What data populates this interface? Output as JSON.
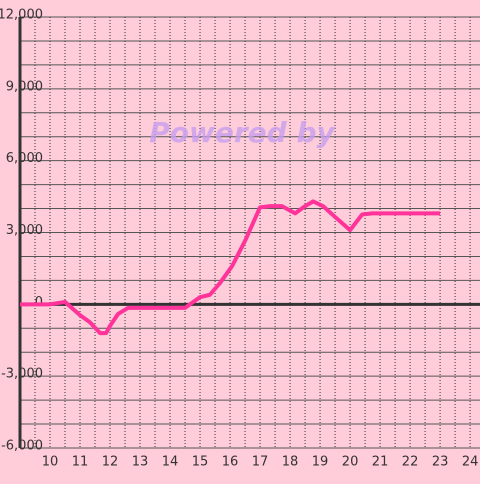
{
  "chart_data": {
    "type": "line",
    "annotation": "Powered by",
    "x": [
      9,
      10,
      10.5,
      11,
      11.33,
      11.67,
      11.87,
      12,
      12.27,
      12.6,
      14.5,
      15,
      15.33,
      15.67,
      16.07,
      16.5,
      17,
      17.33,
      17.73,
      18.17,
      18.5,
      18.77,
      19.1,
      19.5,
      20,
      20.4,
      20.73,
      23
    ],
    "series": [
      {
        "color": "#ff3399",
        "values": [
          0,
          0,
          100,
          -450,
          -750,
          -1200,
          -1200,
          -900,
          -400,
          -150,
          -150,
          300,
          400,
          900,
          1600,
          2650,
          4050,
          4100,
          4100,
          3800,
          4100,
          4300,
          4100,
          3650,
          3100,
          3750,
          3800,
          3800
        ]
      }
    ],
    "xlim": [
      9,
      24.33
    ],
    "xticks": [
      10,
      11,
      12,
      13,
      14,
      15,
      16,
      17,
      18,
      19,
      20,
      21,
      22,
      23,
      24
    ],
    "ylim": [
      -6000,
      12000
    ],
    "yticks": [
      {
        "value": -6000,
        "label": "-6,000"
      },
      {
        "value": -3000,
        "label": "-3,000"
      },
      0,
      {
        "value": 3000,
        "label": "3,000"
      },
      {
        "value": 6000,
        "label": "6,000"
      },
      {
        "value": 9000,
        "label": "9,000"
      },
      {
        "value": 12000,
        "label": "12,000"
      }
    ],
    "grid": true
  }
}
